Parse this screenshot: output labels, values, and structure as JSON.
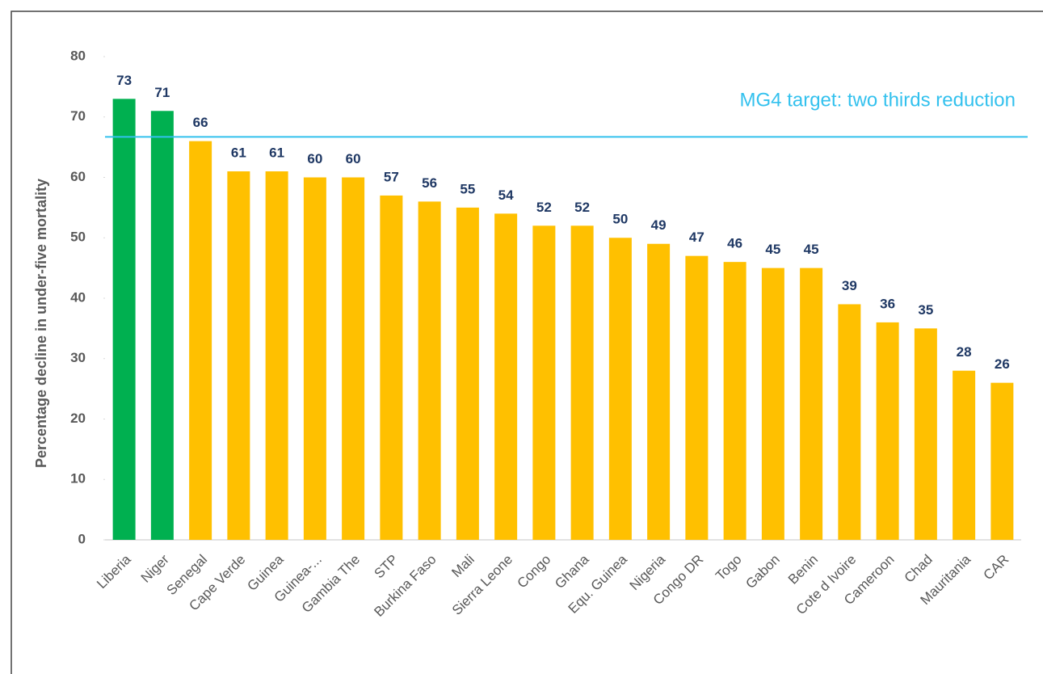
{
  "chart_data": {
    "type": "bar",
    "y_label": "Percentage decline in under-five mortality",
    "categories": [
      "Liberia",
      "Niger",
      "Senegal",
      "Cape Verde",
      "Guinea",
      "Guinea-...",
      "Gambia The",
      "STP",
      "Burkina Faso",
      "Mali",
      "Sierra Leone",
      "Congo",
      "Ghana",
      "Equ. Guinea",
      "Nigeria",
      "Congo DR",
      "Togo",
      "Gabon",
      "Benin",
      "Cote d Ivoire",
      "Cameroon",
      "Chad",
      "Mauritania",
      "CAR"
    ],
    "values": [
      73,
      71,
      66,
      61,
      61,
      60,
      60,
      57,
      56,
      55,
      54,
      52,
      52,
      50,
      49,
      47,
      46,
      45,
      45,
      39,
      36,
      35,
      28,
      26
    ],
    "colors": [
      "#00b050",
      "#00b050",
      "#ffc000",
      "#ffc000",
      "#ffc000",
      "#ffc000",
      "#ffc000",
      "#ffc000",
      "#ffc000",
      "#ffc000",
      "#ffc000",
      "#ffc000",
      "#ffc000",
      "#ffc000",
      "#ffc000",
      "#ffc000",
      "#ffc000",
      "#ffc000",
      "#ffc000",
      "#ffc000",
      "#ffc000",
      "#ffc000",
      "#ffc000",
      "#ffc000"
    ],
    "ylim": [
      0,
      80
    ],
    "yticks": [
      0,
      10,
      20,
      30,
      40,
      50,
      60,
      70,
      80
    ],
    "target_line": {
      "value": 66.7,
      "label": "MG4 target: two thirds reduction",
      "color": "#33c1ee"
    }
  }
}
